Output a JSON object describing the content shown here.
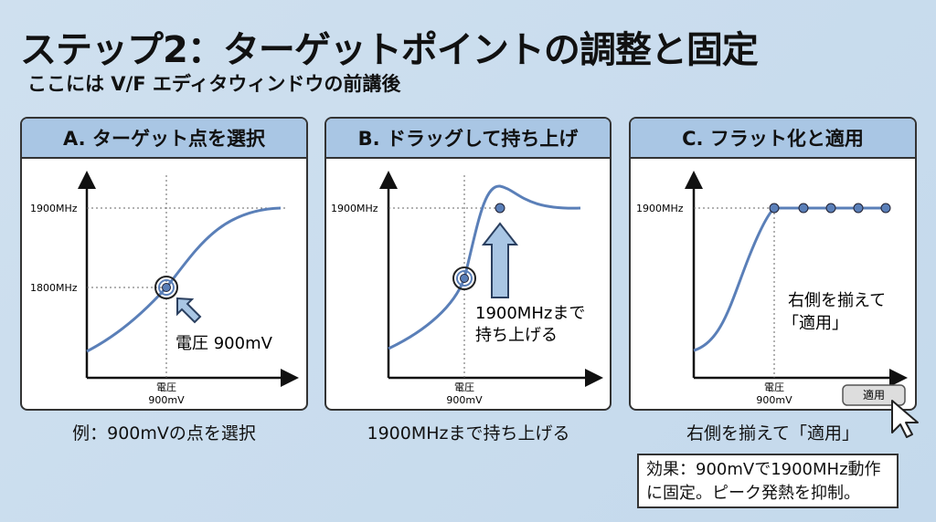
{
  "title": "ステップ2：ターゲットポイントの調整と固定",
  "subtitle": "ここには V/F エディタウィンドウの前講後",
  "accent": "#5a7fb8",
  "panels": [
    {
      "header": "A. ターゲット点を選択",
      "y_labels": [
        "1900MHz",
        "1800MHz"
      ],
      "x_label_1": "電圧",
      "x_label_2": "900mV",
      "annotation": "電圧 900mV",
      "caption": "例：900mVの点を選択"
    },
    {
      "header": "B. ドラッグして持ち上げ",
      "y_labels": [
        "1900MHz"
      ],
      "x_label_1": "電圧",
      "x_label_2": "900mV",
      "annotation_1": "1900MHzまで",
      "annotation_2": "持ち上げる",
      "caption": "1900MHzまで持ち上げる"
    },
    {
      "header": "C. フラット化と適用",
      "y_labels": [
        "1900MHz"
      ],
      "x_label_1": "電圧",
      "x_label_2": "900mV",
      "annotation_1": "右側を揃えて",
      "annotation_2": "「適用」",
      "apply_button": "適用",
      "caption": "右側を揃えて「適用」"
    }
  ],
  "effect_line_1": "効果：900mVで1900MHz動作",
  "effect_line_2": "に固定。ピーク発熱を抑制。"
}
